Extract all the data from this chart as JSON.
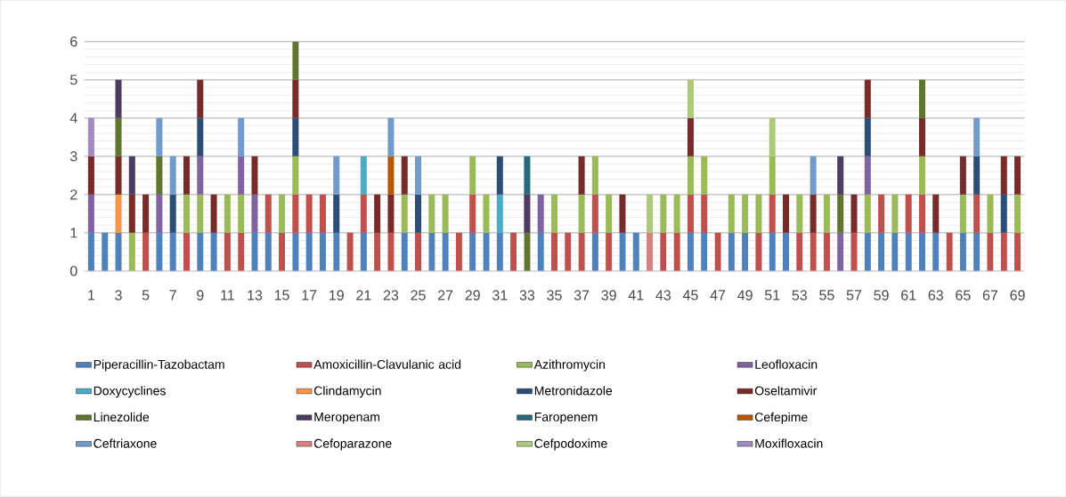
{
  "chart_data": {
    "type": "bar",
    "stacked": true,
    "grid": "y",
    "legend": "bottom",
    "categories": [
      "1",
      null,
      "3",
      null,
      "5",
      null,
      "7",
      null,
      "9",
      null,
      "11",
      null,
      "13",
      null,
      "15",
      null,
      "17",
      null,
      "19",
      null,
      "21",
      null,
      "23",
      null,
      "25",
      null,
      "27",
      null,
      "29",
      null,
      "31",
      null,
      "33",
      null,
      "35",
      null,
      "37",
      null,
      "39",
      null,
      "41",
      null,
      "43",
      null,
      "45",
      null,
      "47",
      null,
      "49",
      null,
      "51",
      null,
      "53",
      null,
      "55",
      null,
      "57",
      null,
      "59",
      null,
      "61",
      null,
      "63",
      null,
      "65",
      null,
      "67",
      null,
      "69"
    ],
    "ylim": [
      0,
      6
    ],
    "yticks": [
      0,
      1,
      2,
      3,
      4,
      5,
      6
    ],
    "series": [
      {
        "name": "Piperacillin-Tazobactam",
        "color": "#4f81bd",
        "values": [
          1,
          1,
          1,
          null,
          null,
          1,
          1,
          null,
          1,
          1,
          null,
          null,
          1,
          1,
          null,
          1,
          1,
          1,
          1,
          null,
          1,
          null,
          null,
          1,
          null,
          1,
          1,
          null,
          1,
          1,
          1,
          null,
          null,
          1,
          null,
          null,
          null,
          1,
          null,
          1,
          1,
          null,
          null,
          null,
          1,
          1,
          null,
          1,
          1,
          null,
          1,
          1,
          null,
          null,
          null,
          null,
          null,
          1,
          1,
          1,
          1,
          1,
          1,
          null,
          1,
          1,
          null,
          null,
          null
        ]
      },
      {
        "name": "Amoxicillin-Clavulanic acid",
        "color": "#c0504d",
        "values": [
          null,
          null,
          null,
          null,
          1,
          null,
          null,
          1,
          null,
          null,
          1,
          1,
          null,
          1,
          1,
          1,
          1,
          1,
          null,
          1,
          1,
          1,
          1,
          null,
          1,
          null,
          null,
          1,
          1,
          null,
          null,
          1,
          null,
          null,
          1,
          1,
          1,
          1,
          1,
          null,
          null,
          null,
          1,
          1,
          1,
          1,
          1,
          null,
          null,
          1,
          1,
          null,
          1,
          1,
          1,
          null,
          1,
          null,
          1,
          null,
          1,
          1,
          null,
          1,
          null,
          1,
          1,
          1,
          1
        ]
      },
      {
        "name": "Azithromycin",
        "color": "#9bbb59",
        "values": [
          null,
          null,
          null,
          1,
          null,
          null,
          null,
          1,
          1,
          null,
          1,
          1,
          null,
          null,
          1,
          1,
          null,
          null,
          null,
          null,
          null,
          null,
          null,
          1,
          null,
          1,
          1,
          null,
          1,
          1,
          null,
          null,
          null,
          null,
          1,
          null,
          1,
          1,
          1,
          null,
          null,
          null,
          1,
          1,
          1,
          1,
          null,
          1,
          1,
          1,
          1,
          null,
          1,
          null,
          1,
          null,
          null,
          1,
          null,
          1,
          null,
          1,
          null,
          null,
          1,
          null,
          1,
          null,
          1
        ]
      },
      {
        "name": "Leofloxacin",
        "color": "#8064a2",
        "values": [
          1,
          null,
          null,
          null,
          null,
          1,
          null,
          null,
          1,
          null,
          null,
          1,
          1,
          null,
          null,
          null,
          null,
          null,
          null,
          null,
          null,
          null,
          null,
          null,
          null,
          null,
          null,
          null,
          null,
          null,
          null,
          null,
          null,
          1,
          null,
          null,
          null,
          null,
          null,
          null,
          null,
          null,
          null,
          null,
          null,
          null,
          null,
          null,
          null,
          null,
          null,
          null,
          null,
          null,
          null,
          1,
          null,
          1,
          null,
          null,
          null,
          null,
          null,
          null,
          null,
          null,
          null,
          null,
          null
        ]
      },
      {
        "name": "Doxycyclines",
        "color": "#4bacc6",
        "values": [
          null,
          null,
          null,
          null,
          null,
          null,
          null,
          null,
          null,
          null,
          null,
          null,
          null,
          null,
          null,
          null,
          null,
          null,
          null,
          null,
          1,
          null,
          null,
          null,
          null,
          null,
          null,
          null,
          null,
          null,
          1,
          null,
          null,
          null,
          null,
          null,
          null,
          null,
          null,
          null,
          null,
          null,
          null,
          null,
          null,
          null,
          null,
          null,
          null,
          null,
          null,
          null,
          null,
          null,
          null,
          null,
          null,
          null,
          null,
          null,
          null,
          null,
          null,
          null,
          null,
          null,
          null,
          null,
          null
        ]
      },
      {
        "name": "Clindamycin",
        "color": "#f79646",
        "values": [
          null,
          null,
          1,
          null,
          null,
          null,
          null,
          null,
          null,
          null,
          null,
          null,
          null,
          null,
          null,
          null,
          null,
          null,
          null,
          null,
          null,
          null,
          null,
          null,
          null,
          null,
          null,
          null,
          null,
          null,
          null,
          null,
          null,
          null,
          null,
          null,
          null,
          null,
          null,
          null,
          null,
          null,
          null,
          null,
          null,
          null,
          null,
          null,
          null,
          null,
          null,
          null,
          null,
          null,
          null,
          null,
          null,
          null,
          null,
          null,
          null,
          null,
          null,
          null,
          null,
          null,
          null,
          null,
          null
        ]
      },
      {
        "name": "Metronidazole",
        "color": "#2c4d75",
        "values": [
          null,
          null,
          null,
          null,
          null,
          null,
          1,
          null,
          1,
          null,
          null,
          null,
          null,
          null,
          null,
          1,
          null,
          null,
          1,
          null,
          null,
          null,
          null,
          null,
          1,
          null,
          null,
          null,
          null,
          null,
          1,
          null,
          null,
          null,
          null,
          null,
          null,
          null,
          null,
          null,
          null,
          null,
          null,
          null,
          null,
          null,
          null,
          null,
          null,
          null,
          null,
          null,
          null,
          null,
          null,
          null,
          null,
          1,
          null,
          null,
          null,
          null,
          null,
          null,
          null,
          1,
          null,
          1,
          null
        ]
      },
      {
        "name": "Oseltamivir",
        "color": "#772c2a",
        "values": [
          1,
          null,
          1,
          1,
          1,
          null,
          null,
          1,
          1,
          1,
          null,
          null,
          1,
          null,
          null,
          1,
          null,
          null,
          null,
          null,
          null,
          1,
          1,
          1,
          null,
          null,
          null,
          null,
          null,
          null,
          null,
          null,
          null,
          null,
          null,
          null,
          1,
          null,
          null,
          1,
          null,
          null,
          null,
          null,
          1,
          null,
          null,
          null,
          null,
          null,
          null,
          1,
          null,
          1,
          null,
          null,
          1,
          1,
          null,
          null,
          null,
          1,
          1,
          null,
          1,
          null,
          null,
          1,
          1
        ]
      },
      {
        "name": "Linezolide",
        "color": "#5f7530",
        "values": [
          null,
          null,
          1,
          null,
          null,
          1,
          null,
          null,
          null,
          null,
          null,
          null,
          null,
          null,
          null,
          1,
          null,
          null,
          null,
          null,
          null,
          null,
          null,
          null,
          null,
          null,
          null,
          null,
          null,
          null,
          null,
          null,
          1,
          null,
          null,
          null,
          null,
          null,
          null,
          null,
          null,
          null,
          null,
          null,
          null,
          null,
          null,
          null,
          null,
          null,
          null,
          null,
          null,
          null,
          null,
          1,
          null,
          null,
          null,
          null,
          null,
          1,
          null,
          null,
          null,
          null,
          null,
          null,
          null
        ]
      },
      {
        "name": "Meropenam",
        "color": "#4d3b62",
        "values": [
          null,
          null,
          1,
          1,
          null,
          null,
          null,
          null,
          null,
          null,
          null,
          null,
          null,
          null,
          null,
          null,
          null,
          null,
          null,
          null,
          null,
          null,
          null,
          null,
          null,
          null,
          null,
          null,
          null,
          null,
          null,
          null,
          1,
          null,
          null,
          null,
          null,
          null,
          null,
          null,
          null,
          null,
          null,
          null,
          null,
          null,
          null,
          null,
          null,
          null,
          null,
          null,
          null,
          null,
          null,
          1,
          null,
          null,
          null,
          null,
          null,
          null,
          null,
          null,
          null,
          null,
          null,
          null,
          null
        ]
      },
      {
        "name": "Faropenem",
        "color": "#276a7c",
        "values": [
          null,
          null,
          null,
          null,
          null,
          null,
          null,
          null,
          null,
          null,
          null,
          null,
          null,
          null,
          null,
          null,
          null,
          null,
          null,
          null,
          null,
          null,
          null,
          null,
          null,
          null,
          null,
          null,
          null,
          null,
          null,
          null,
          1,
          null,
          null,
          null,
          null,
          null,
          null,
          null,
          null,
          null,
          null,
          null,
          null,
          null,
          null,
          null,
          null,
          null,
          null,
          null,
          null,
          null,
          null,
          null,
          null,
          null,
          null,
          null,
          null,
          null,
          null,
          null,
          null,
          null,
          null,
          null,
          null
        ]
      },
      {
        "name": "Cefepime",
        "color": "#b65708",
        "values": [
          null,
          null,
          null,
          null,
          null,
          null,
          null,
          null,
          null,
          null,
          null,
          null,
          null,
          null,
          null,
          null,
          null,
          null,
          null,
          null,
          null,
          null,
          1,
          null,
          null,
          null,
          null,
          null,
          null,
          null,
          null,
          null,
          null,
          null,
          null,
          null,
          null,
          null,
          null,
          null,
          null,
          null,
          null,
          null,
          null,
          null,
          null,
          null,
          null,
          null,
          null,
          null,
          null,
          null,
          null,
          null,
          null,
          null,
          null,
          null,
          null,
          null,
          null,
          null,
          null,
          null,
          null,
          null,
          null
        ]
      },
      {
        "name": "Ceftriaxone",
        "color": "#729aca",
        "values": [
          null,
          null,
          null,
          null,
          null,
          1,
          1,
          null,
          null,
          null,
          null,
          1,
          null,
          null,
          null,
          null,
          null,
          null,
          1,
          null,
          null,
          null,
          1,
          null,
          1,
          null,
          null,
          null,
          null,
          null,
          null,
          null,
          null,
          null,
          null,
          null,
          null,
          null,
          null,
          null,
          null,
          null,
          null,
          null,
          null,
          null,
          null,
          null,
          null,
          null,
          null,
          null,
          null,
          1,
          null,
          null,
          null,
          null,
          null,
          null,
          null,
          null,
          null,
          null,
          null,
          1,
          null,
          null,
          null
        ]
      },
      {
        "name": "Cefoparazone",
        "color": "#d7807e",
        "values": [
          null,
          null,
          null,
          null,
          null,
          null,
          null,
          null,
          null,
          null,
          null,
          null,
          null,
          null,
          null,
          null,
          null,
          null,
          null,
          null,
          null,
          null,
          null,
          null,
          null,
          null,
          null,
          null,
          null,
          null,
          null,
          null,
          null,
          null,
          null,
          null,
          null,
          null,
          null,
          null,
          null,
          1,
          null,
          null,
          null,
          null,
          null,
          null,
          null,
          null,
          null,
          null,
          null,
          null,
          null,
          null,
          null,
          null,
          null,
          null,
          null,
          null,
          null,
          null,
          null,
          null,
          null,
          null,
          null
        ]
      },
      {
        "name": "Cefpodoxime",
        "color": "#afc97a",
        "values": [
          null,
          null,
          null,
          null,
          null,
          null,
          null,
          null,
          null,
          null,
          null,
          null,
          null,
          null,
          null,
          null,
          null,
          null,
          null,
          null,
          null,
          null,
          null,
          null,
          null,
          null,
          null,
          null,
          null,
          null,
          null,
          null,
          null,
          null,
          null,
          null,
          null,
          null,
          null,
          null,
          null,
          1,
          null,
          null,
          1,
          null,
          null,
          null,
          null,
          null,
          1,
          null,
          null,
          null,
          null,
          null,
          null,
          null,
          null,
          null,
          null,
          null,
          null,
          null,
          null,
          null,
          null,
          null,
          null
        ]
      },
      {
        "name": "Moxifloxacin",
        "color": "#a18bbe",
        "values": [
          1,
          null,
          null,
          null,
          null,
          null,
          null,
          null,
          null,
          null,
          null,
          null,
          null,
          null,
          null,
          null,
          null,
          null,
          null,
          null,
          null,
          null,
          null,
          null,
          null,
          null,
          null,
          null,
          null,
          null,
          null,
          null,
          null,
          null,
          null,
          null,
          null,
          null,
          null,
          null,
          null,
          null,
          null,
          null,
          null,
          null,
          null,
          null,
          null,
          null,
          null,
          null,
          null,
          null,
          null,
          null,
          null,
          null,
          null,
          null,
          null,
          null,
          null,
          null,
          null,
          null,
          null,
          null,
          null
        ]
      }
    ]
  }
}
